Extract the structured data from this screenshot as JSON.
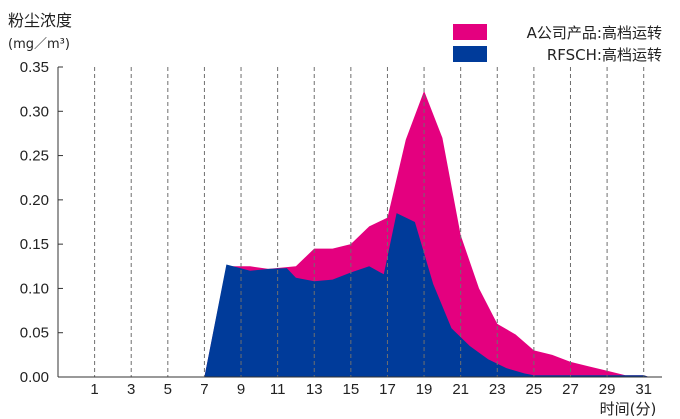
{
  "chart_data": {
    "type": "area",
    "title": "",
    "ylabel": "粉尘浓度",
    "yunit": "(mg／m³)",
    "xlabel": "时间(分)",
    "ylim": [
      0,
      0.35
    ],
    "yticks": [
      "0.00",
      "0.05",
      "0.10",
      "0.15",
      "0.20",
      "0.25",
      "0.30",
      "0.35"
    ],
    "xlim": [
      -1,
      32
    ],
    "xticks": [
      "1",
      "3",
      "5",
      "7",
      "9",
      "11",
      "13",
      "15",
      "17",
      "19",
      "21",
      "23",
      "25",
      "27",
      "29",
      "31"
    ],
    "grid": "vertical dashed",
    "legend": "top-right",
    "series": [
      {
        "name": "A公司产品:高档运转",
        "color": "#e4007f",
        "points": [
          [
            -1,
            0
          ],
          [
            7,
            0
          ],
          [
            8.2,
            0.125
          ],
          [
            9.5,
            0.125
          ],
          [
            10.5,
            0.122
          ],
          [
            12,
            0.125
          ],
          [
            13,
            0.145
          ],
          [
            14,
            0.145
          ],
          [
            15,
            0.15
          ],
          [
            16,
            0.17
          ],
          [
            17,
            0.18
          ],
          [
            18,
            0.268
          ],
          [
            19,
            0.323
          ],
          [
            20,
            0.27
          ],
          [
            21,
            0.16
          ],
          [
            22,
            0.1
          ],
          [
            23,
            0.06
          ],
          [
            24,
            0.048
          ],
          [
            25,
            0.03
          ],
          [
            26,
            0.025
          ],
          [
            27,
            0.017
          ],
          [
            28,
            0.012
          ],
          [
            29,
            0.007
          ],
          [
            30,
            0.002
          ],
          [
            31,
            0.002
          ],
          [
            31.3,
            0
          ]
        ]
      },
      {
        "name": "RFSCH:高档运转",
        "color": "#003b9a",
        "points": [
          [
            -1,
            0
          ],
          [
            7,
            0
          ],
          [
            8.2,
            0.127
          ],
          [
            9.5,
            0.12
          ],
          [
            10.5,
            0.122
          ],
          [
            11.5,
            0.123
          ],
          [
            12,
            0.112
          ],
          [
            13,
            0.108
          ],
          [
            14,
            0.11
          ],
          [
            15,
            0.118
          ],
          [
            16,
            0.125
          ],
          [
            16.8,
            0.116
          ],
          [
            17.5,
            0.185
          ],
          [
            18.5,
            0.175
          ],
          [
            19.5,
            0.105
          ],
          [
            20.5,
            0.055
          ],
          [
            21.5,
            0.035
          ],
          [
            22.5,
            0.02
          ],
          [
            23.5,
            0.01
          ],
          [
            24.5,
            0.004
          ],
          [
            25,
            0.002
          ],
          [
            31,
            0.002
          ],
          [
            31.3,
            0
          ]
        ]
      }
    ]
  }
}
